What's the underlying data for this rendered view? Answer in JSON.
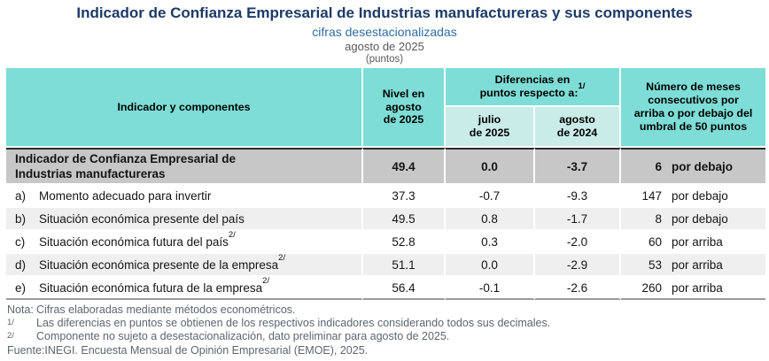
{
  "header": {
    "title": "Indicador de Confianza Empresarial de Industrias manufactureras y sus componentes",
    "subtitle": "cifras desestacionalizadas",
    "period": "agosto de 2025",
    "unit": "(puntos)"
  },
  "table": {
    "col_indicator": "Indicador y componentes",
    "col_level": "Nivel en\nagosto\nde 2025",
    "col_diff_group": "Diferencias en\npuntos respecto a:",
    "col_diff_group_sup": "1/",
    "col_diff_jul": "julio\nde 2025",
    "col_diff_ago": "agosto\nde 2024",
    "col_months": "Número de meses\nconsecutivos por\narriba o por debajo del\numbral de 50 puntos",
    "main_row": {
      "marker": "",
      "label": "Indicador de Confianza Empresarial de\nIndustrias manufactureras",
      "sup": "",
      "level": "49.4",
      "diff_jul": "0.0",
      "diff_ago": "-3.7",
      "months": "6",
      "position": "por debajo"
    },
    "rows": [
      {
        "marker": "a)",
        "label": "Momento adecuado para invertir",
        "sup": "",
        "level": "37.3",
        "diff_jul": "-0.7",
        "diff_ago": "-9.3",
        "months": "147",
        "position": "por debajo"
      },
      {
        "marker": "b)",
        "label": "Situación económica presente del país",
        "sup": "",
        "level": "49.5",
        "diff_jul": "0.8",
        "diff_ago": "-1.7",
        "months": "8",
        "position": "por debajo"
      },
      {
        "marker": "c)",
        "label": "Situación económica futura del país",
        "sup": "2/",
        "level": "52.8",
        "diff_jul": "0.3",
        "diff_ago": "-2.0",
        "months": "60",
        "position": "por arriba"
      },
      {
        "marker": "d)",
        "label": "Situación económica presente de la empresa",
        "sup": "2/",
        "level": "51.1",
        "diff_jul": "0.0",
        "diff_ago": "-2.9",
        "months": "53",
        "position": "por arriba"
      },
      {
        "marker": "e)",
        "label": "Situación económica futura de la empresa",
        "sup": "2/",
        "level": "56.4",
        "diff_jul": "-0.1",
        "diff_ago": "-2.6",
        "months": "260",
        "position": "por arriba"
      }
    ]
  },
  "notes": [
    {
      "label": "Nota:",
      "superscript": false,
      "text": "Cifras elaboradas mediante métodos econométricos."
    },
    {
      "label": "1/",
      "superscript": true,
      "text": "Las diferencias en puntos se obtienen de los respectivos indicadores considerando todos sus decimales."
    },
    {
      "label": "2/",
      "superscript": true,
      "text": "Componente no sujeto a desestacionalización, dato preliminar para agosto de 2025."
    },
    {
      "label": "Fuente:",
      "superscript": false,
      "text": "INEGI. Encuesta Mensual de Opinión Empresarial (EMOE), 2025."
    }
  ],
  "colors": {
    "header_fill": "#7eddd6",
    "subheader_fill": "#c9ece8",
    "main_row_fill": "#c7c7c7",
    "alt_row_fill": "#efefef",
    "title_color": "#1d3a66",
    "subtitle_color": "#2e6ca4",
    "muted_text_color": "#58595b",
    "note_text_color": "#5c6670"
  },
  "chart_data": {
    "type": "table",
    "title": "Indicador de Confianza Empresarial de Industrias manufactureras y sus componentes",
    "subtitle": "cifras desestacionalizadas",
    "period": "agosto de 2025",
    "units": "puntos",
    "columns": [
      "Indicador y componentes",
      "Nivel en agosto de 2025",
      "Diferencia vs julio de 2025",
      "Diferencia vs agosto de 2024",
      "Meses consecutivos",
      "Posición vs umbral de 50 puntos"
    ],
    "rows": [
      [
        "Indicador de Confianza Empresarial de Industrias manufactureras",
        49.4,
        0.0,
        -3.7,
        6,
        "por debajo"
      ],
      [
        "a) Momento adecuado para invertir",
        37.3,
        -0.7,
        -9.3,
        147,
        "por debajo"
      ],
      [
        "b) Situación económica presente del país",
        49.5,
        0.8,
        -1.7,
        8,
        "por debajo"
      ],
      [
        "c) Situación económica futura del país 2/",
        52.8,
        0.3,
        -2.0,
        60,
        "por arriba"
      ],
      [
        "d) Situación económica presente de la empresa 2/",
        51.1,
        0.0,
        -2.9,
        53,
        "por arriba"
      ],
      [
        "e) Situación económica futura de la empresa 2/",
        56.4,
        -0.1,
        -2.6,
        260,
        "por arriba"
      ]
    ]
  }
}
